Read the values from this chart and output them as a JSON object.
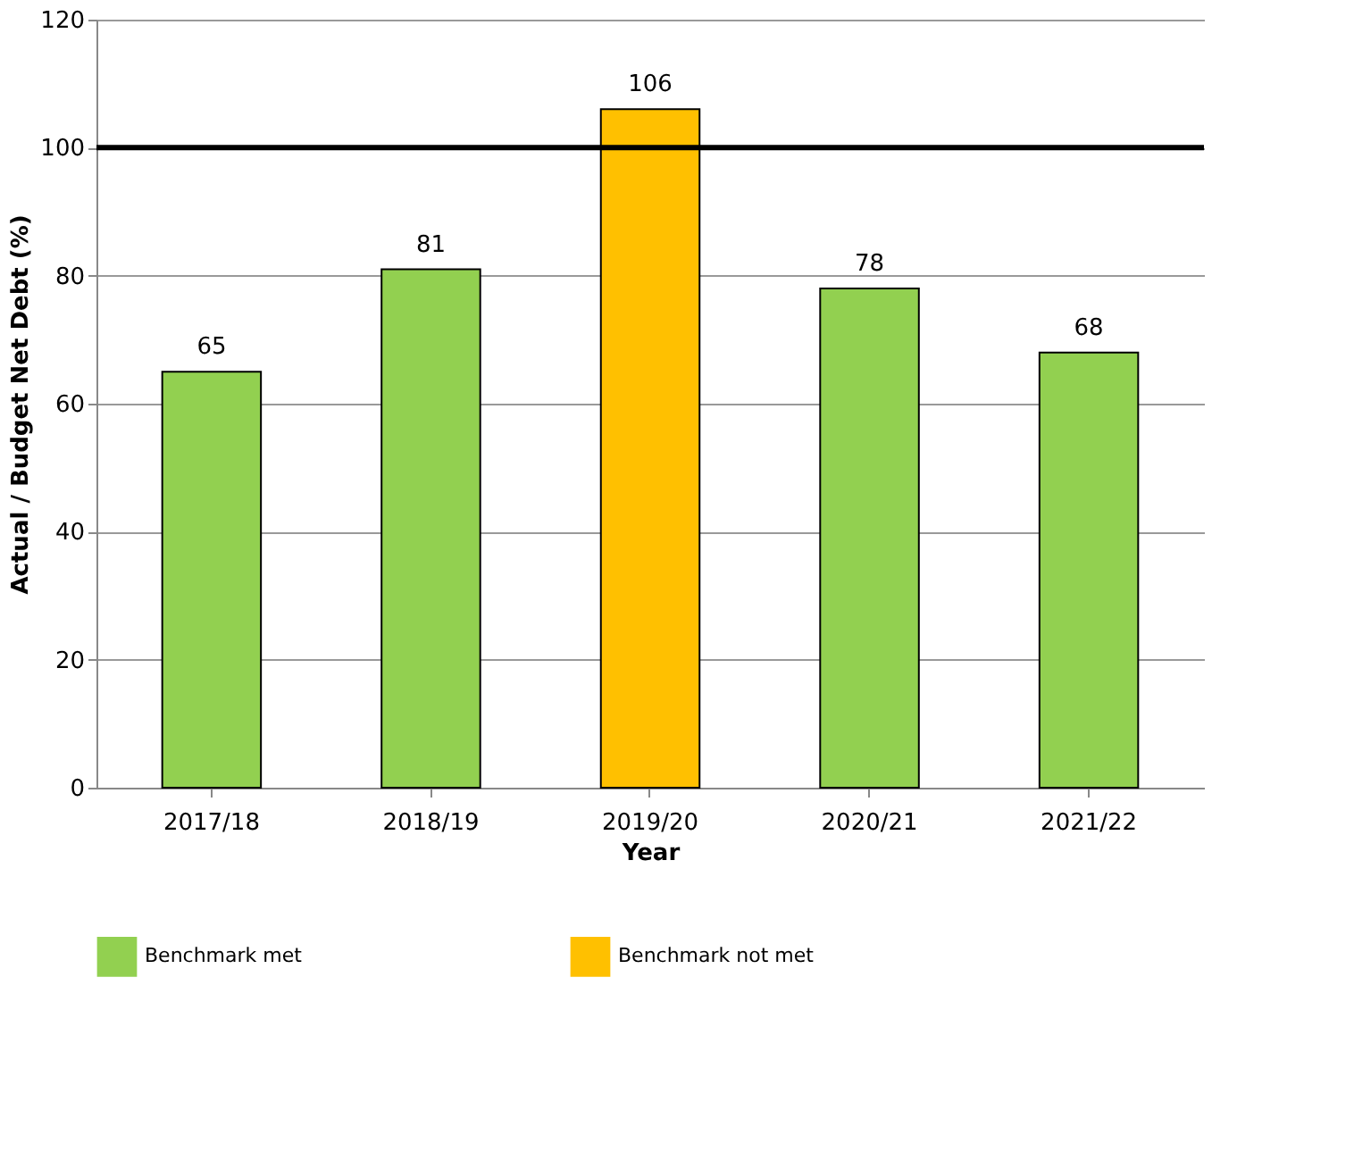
{
  "chart_data": {
    "type": "bar",
    "xlabel": "Year",
    "ylabel": "Actual / Budget Net Debt (%)",
    "categories": [
      "2017/18",
      "2018/19",
      "2019/20",
      "2020/21",
      "2021/22"
    ],
    "series": [
      {
        "name": "Benchmark met",
        "color": "#92d050",
        "values": [
          65,
          81,
          null,
          78,
          68
        ]
      },
      {
        "name": "Benchmark not met",
        "color": "#ffc000",
        "values": [
          null,
          null,
          106,
          null,
          null
        ]
      }
    ],
    "ylim": [
      0,
      120
    ],
    "yticks": [
      0,
      20,
      40,
      60,
      80,
      100,
      120
    ],
    "grid": "y",
    "legend": "bottom",
    "data_labels": true,
    "ref_lines": [
      {
        "axis": "y",
        "value": 100,
        "color": "#000000"
      }
    ]
  }
}
